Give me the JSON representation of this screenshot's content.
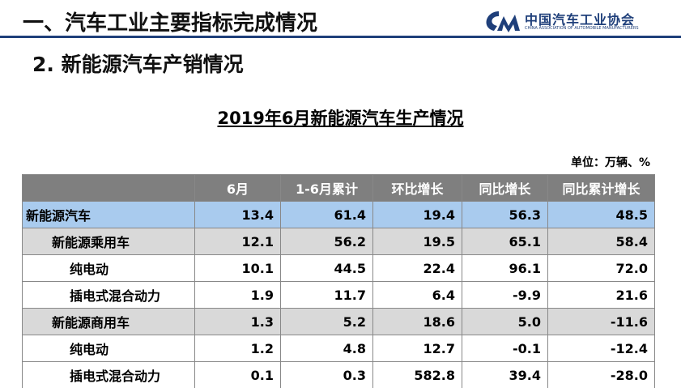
{
  "header": {
    "title": "一、汽车工业主要指标完成情况",
    "logo_name": "中国汽车工业协会",
    "logo_english": "CHINA ASSOCIATION OF AUTOMOBILE MANUFACTURERS"
  },
  "subtitle": "2. 新能源汽车产销情况",
  "table": {
    "title": "2019年6月新能源汽车生产情况",
    "unit": "单位：万辆、%",
    "columns": [
      "",
      "6月",
      "1-6月累计",
      "环比增长",
      "同比增长",
      "同比累计增长"
    ],
    "rows": [
      [
        "新能源汽车",
        "13.4",
        "61.4",
        "19.4",
        "56.3",
        "48.5"
      ],
      [
        "新能源乘用车",
        "12.1",
        "56.2",
        "19.5",
        "65.1",
        "58.4"
      ],
      [
        "纯电动",
        "10.1",
        "44.5",
        "22.4",
        "96.1",
        "72.0"
      ],
      [
        "插电式混合动力",
        "1.9",
        "11.7",
        "6.4",
        "-9.9",
        "21.6"
      ],
      [
        "新能源商用车",
        "1.3",
        "5.2",
        "18.6",
        "5.0",
        "-11.6"
      ],
      [
        "纯电动",
        "1.2",
        "4.8",
        "12.7",
        "-0.1",
        "-12.4"
      ],
      [
        "插电式混合动力",
        "0.1",
        "0.3",
        "582.8",
        "39.4",
        "-28.0"
      ]
    ]
  }
}
